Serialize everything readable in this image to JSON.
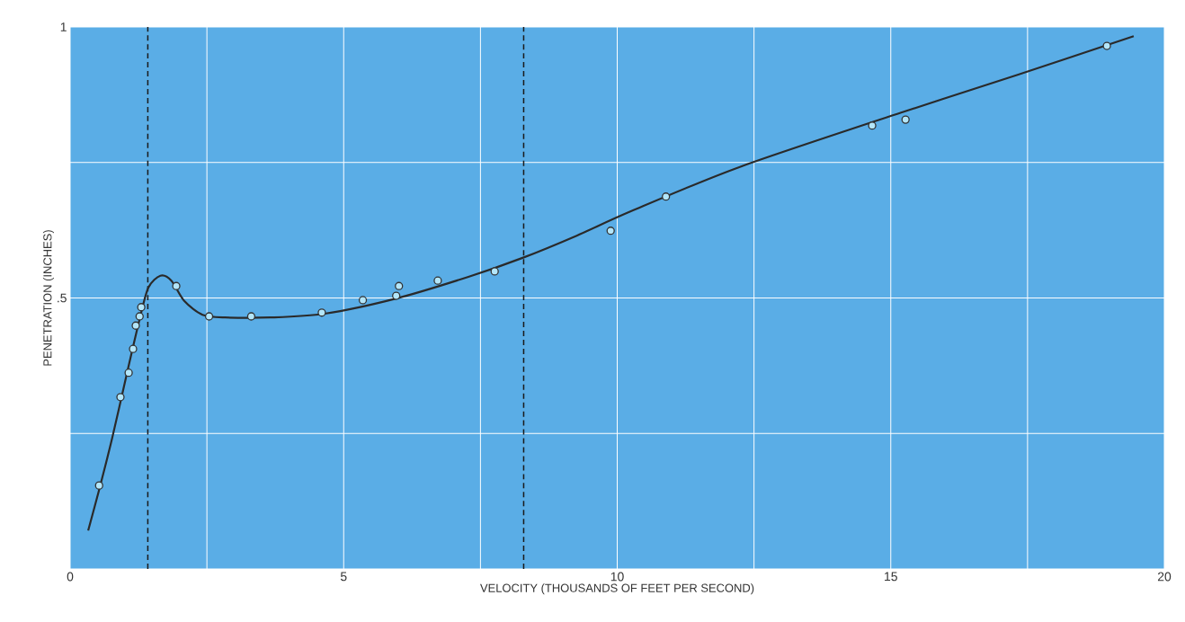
{
  "chart_data": {
    "type": "scatter",
    "xlabel": "VELOCITY (THOUSANDS OF FEET PER SECOND)",
    "ylabel": "PENETRATION (INCHES)",
    "xlim": [
      0,
      20
    ],
    "ylim": [
      0,
      1
    ],
    "xticks": [
      0,
      {
        "value": 2.5,
        "label": null
      },
      5,
      {
        "value": 7.5,
        "label": null
      },
      10,
      {
        "value": 12.5,
        "label": null
      },
      15,
      {
        "value": 17.5,
        "label": null
      },
      20
    ],
    "yticks": [
      {
        "value": 0,
        "label": null
      },
      {
        "value": 0.25,
        "label": null
      },
      {
        "value": 0.5,
        "label": ".5"
      },
      {
        "value": 0.75,
        "label": null
      },
      1
    ],
    "grid": true,
    "series": [
      {
        "marker": "circle",
        "color": "#333333",
        "x": [
          0.53,
          0.92,
          1.07,
          1.15,
          1.2,
          1.27,
          1.3,
          1.94,
          2.54,
          3.31,
          4.6,
          5.35,
          5.96,
          6.01,
          6.72,
          7.76,
          9.88,
          10.89,
          14.66,
          15.27,
          18.95
        ],
        "values": [
          0.154,
          0.317,
          0.362,
          0.406,
          0.449,
          0.466,
          0.483,
          0.522,
          0.466,
          0.466,
          0.473,
          0.496,
          0.504,
          0.522,
          0.532,
          0.549,
          0.624,
          0.687,
          0.818,
          0.829,
          0.965
        ]
      },
      {
        "type": "line",
        "marker": "none",
        "line_style": "solid",
        "color": "#2a2a2a",
        "x": [
          0.33,
          0.53,
          0.77,
          1.02,
          1.27,
          1.43,
          1.65,
          1.85,
          2.09,
          2.42,
          2.83,
          3.66,
          4.65,
          5.96,
          7.28,
          8.27,
          9.26,
          10.25,
          12.22,
          15.19,
          17.33,
          19.44
        ],
        "values": [
          0.071,
          0.146,
          0.242,
          0.353,
          0.461,
          0.519,
          0.541,
          0.532,
          0.494,
          0.469,
          0.464,
          0.464,
          0.471,
          0.499,
          0.539,
          0.574,
          0.615,
          0.66,
          0.741,
          0.842,
          0.912,
          0.983
        ]
      }
    ],
    "ref_lines": [
      {
        "axis": "x",
        "value": 1.42,
        "color": "#1a1a1a",
        "line_style": "dashed"
      },
      {
        "axis": "x",
        "value": 8.29,
        "color": "#1a1a1a",
        "line_style": "dashed"
      }
    ]
  }
}
